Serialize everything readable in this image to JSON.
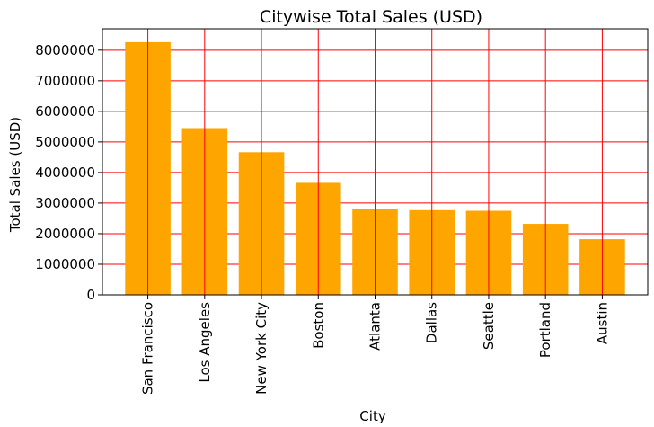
{
  "chart_data": {
    "type": "bar",
    "title": "Citywise Total Sales (USD)",
    "xlabel": "City",
    "ylabel": "Total Sales (USD)",
    "categories": [
      "San Francisco",
      "Los Angeles",
      "New York City",
      "Boston",
      "Atlanta",
      "Dallas",
      "Seattle",
      "Portland",
      "Austin"
    ],
    "values": [
      8262204,
      5452571,
      4664317,
      3661642,
      2795499,
      2767975,
      2747755,
      2320490,
      1819582
    ],
    "ylim": [
      0,
      8700000
    ],
    "yticks": [
      0,
      1000000,
      2000000,
      3000000,
      4000000,
      5000000,
      6000000,
      7000000,
      8000000
    ],
    "ytick_labels": [
      "0",
      "1000000",
      "2000000",
      "3000000",
      "4000000",
      "5000000",
      "6000000",
      "7000000",
      "8000000"
    ],
    "grid": true,
    "colors": {
      "bar": "#ffa500",
      "grid": "#ff0000",
      "axis": "#000000"
    }
  }
}
